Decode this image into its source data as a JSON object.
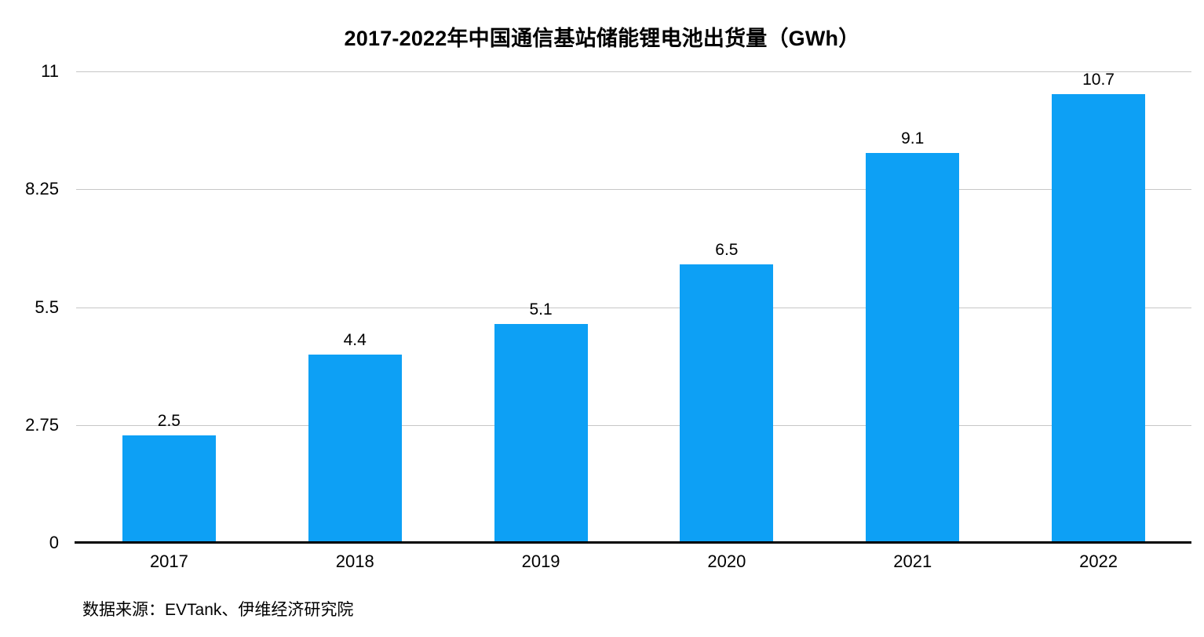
{
  "chart_data": {
    "type": "bar",
    "title": "2017-2022年中国通信基站储能锂电池出货量（GWh）",
    "categories": [
      "2017",
      "2018",
      "2019",
      "2020",
      "2021",
      "2022"
    ],
    "values": [
      2.5,
      4.4,
      5.1,
      6.5,
      9.1,
      10.7
    ],
    "value_labels": [
      "2.5",
      "4.4",
      "5.1",
      "6.5",
      "9.1",
      "10.7"
    ],
    "ylim": [
      0,
      11
    ],
    "yticks": [
      {
        "value": 11,
        "label": "11"
      },
      {
        "value": 8.25,
        "label": "8.25"
      },
      {
        "value": 5.5,
        "label": "5.5"
      },
      {
        "value": 2.75,
        "label": "2.75"
      },
      {
        "value": 0,
        "label": "0"
      }
    ],
    "grid": true,
    "legend": "none",
    "source_note": "数据来源：EVTank、伊维经济研究院"
  },
  "colors": {
    "bar": "#0da0f5",
    "gridline": "#c7c7c7",
    "axis_line": "#000000",
    "text": "#000000"
  }
}
